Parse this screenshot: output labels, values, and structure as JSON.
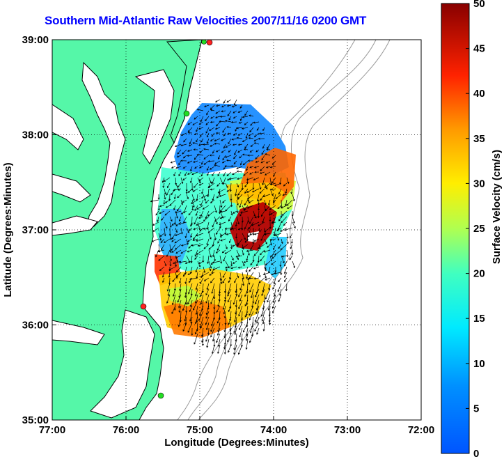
{
  "title": "Southern Mid-Atlantic Raw Velocities 2007/11/16 0200 GMT",
  "axes": {
    "xlabel": "Longitude (Degrees:Minutes)",
    "ylabel": "Latitude (Degrees:Minutes)",
    "xticks": [
      "77:00",
      "76:00",
      "75:00",
      "74:00",
      "73:00",
      "72:00"
    ],
    "yticks": [
      "39:00",
      "38:00",
      "37:00",
      "36:00",
      "35:00"
    ],
    "grid": "dotted"
  },
  "colorbar": {
    "label": "Surface Velocity (cm/s)",
    "ticks": [
      "0",
      "5",
      "10",
      "15",
      "20",
      "25",
      "30",
      "35",
      "40",
      "45",
      "50"
    ],
    "range": [
      0,
      50
    ],
    "units": "cm/s",
    "colormap": "jet"
  },
  "colors": {
    "land": "#55f7a8",
    "coast": "#000000",
    "bathymetry": "#999999",
    "title": "#0000ff",
    "station_red": "#ff2222",
    "station_green": "#22dd22"
  },
  "chart_data": {
    "type": "heatmap",
    "title": "Southern Mid-Atlantic Raw Velocities 2007/11/16 0200 GMT",
    "xlabel": "Longitude (Degrees:Minutes)",
    "ylabel": "Latitude (Degrees:Minutes)",
    "xlim": [
      -77.0,
      -72.0
    ],
    "ylim": [
      35.0,
      39.0
    ],
    "color_scale": [
      0,
      50
    ],
    "velocity_regions": [
      {
        "description": "northern cluster",
        "lon": -75.0,
        "lat": 37.9,
        "speed": 6
      },
      {
        "description": "northeast band",
        "lon": -74.2,
        "lat": 37.55,
        "speed": 40
      },
      {
        "description": "center hotspot",
        "lon": -74.15,
        "lat": 37.0,
        "speed": 50
      },
      {
        "description": "center east small",
        "lon": -73.9,
        "lat": 36.75,
        "speed": 12
      },
      {
        "description": "west mid",
        "lon": -75.5,
        "lat": 37.2,
        "speed": 18
      },
      {
        "description": "southwest corner",
        "lon": -75.5,
        "lat": 36.65,
        "speed": 42
      },
      {
        "description": "south band",
        "lon": -75.0,
        "lat": 36.3,
        "speed": 30
      },
      {
        "description": "south edge",
        "lon": -75.2,
        "lat": 36.0,
        "speed": 36
      }
    ],
    "stations": [
      {
        "color": "red",
        "lon": -74.93,
        "lat": 38.96
      },
      {
        "color": "green",
        "lon": -75.15,
        "lat": 38.95
      },
      {
        "color": "green",
        "lon": -75.17,
        "lat": 38.22
      },
      {
        "color": "red",
        "lon": -75.7,
        "lat": 36.18
      },
      {
        "color": "green",
        "lon": -75.5,
        "lat": 35.24
      }
    ]
  }
}
